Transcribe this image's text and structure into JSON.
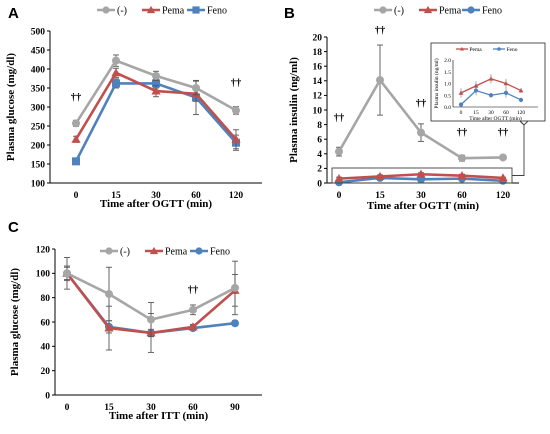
{
  "colors": {
    "control": "#a6a6a6",
    "pema": "#c0504d",
    "feno": "#4f81bd",
    "axis": "#000000",
    "box": "#404040"
  },
  "panels": [
    {
      "id": "A",
      "chart_data": {
        "type": "line",
        "title": "",
        "xlabel": "Time after OGTT (min)",
        "ylabel": "Plasma glucose (mg/dl)",
        "categories": [
          "0",
          "15",
          "30",
          "60",
          "120"
        ],
        "ylim": [
          100,
          500
        ],
        "yticks": [
          100,
          150,
          200,
          250,
          300,
          350,
          400,
          450,
          500
        ],
        "series": [
          {
            "name": "(-)",
            "key": "control",
            "marker": "circle",
            "values": [
              257,
              422,
              382,
              350,
              291
            ],
            "errors": [
              8,
              15,
              12,
              18,
              10
            ]
          },
          {
            "name": "Pema",
            "key": "pema",
            "marker": "triangle",
            "values": [
              215,
              390,
              342,
              335,
              215
            ],
            "errors": [
              8,
              12,
              15,
              20,
              25
            ]
          },
          {
            "name": "Feno",
            "key": "feno",
            "marker": "square",
            "values": [
              157,
              362,
              362,
              325,
              206
            ],
            "errors": [
              6,
              12,
              12,
              45,
              20
            ]
          }
        ],
        "annotations": [
          {
            "x": "0",
            "y": 317,
            "text": "††"
          },
          {
            "x": "120",
            "y": 355,
            "text": "††"
          }
        ],
        "legend": "top"
      }
    },
    {
      "id": "B",
      "chart_data": {
        "type": "line",
        "title": "",
        "xlabel": "Time after OGTT (min)",
        "ylabel": "Plasma insulin (ng/ml)",
        "categories": [
          "0",
          "15",
          "30",
          "60",
          "120"
        ],
        "ylim": [
          0,
          20
        ],
        "yticks": [
          0,
          2,
          4,
          6,
          8,
          10,
          12,
          14,
          16,
          18,
          20
        ],
        "series": [
          {
            "name": "(-)",
            "key": "control",
            "marker": "circle",
            "values": [
              4.3,
              14.1,
              6.9,
              3.4,
              3.5
            ],
            "errors": [
              0.6,
              4.8,
              1.2,
              0.4,
              0.2
            ]
          },
          {
            "name": "Pema",
            "key": "pema",
            "marker": "triangle",
            "values": [
              0.6,
              0.9,
              1.2,
              1.0,
              0.7
            ],
            "errors": [
              0.2,
              0.2,
              0.2,
              0.2,
              0.1
            ]
          },
          {
            "name": "Feno",
            "key": "feno",
            "marker": "circle",
            "values": [
              0.1,
              0.7,
              0.5,
              0.6,
              0.3
            ],
            "errors": [
              0.1,
              0.2,
              0.1,
              0.2,
              0.1
            ]
          }
        ],
        "annotations": [
          {
            "x": "0",
            "y": 8.5,
            "text": "††"
          },
          {
            "x": "15",
            "y": 20.5,
            "text": "††"
          },
          {
            "x": "30",
            "y": 10.5,
            "text": "††"
          },
          {
            "x": "60",
            "y": 6.5,
            "text": "††"
          },
          {
            "x": "120",
            "y": 6.5,
            "text": "††"
          }
        ],
        "legend": "top",
        "inset": {
          "ylabel": "Plasma insulin (ng/ml)",
          "xlabel": "Time after OGTT (min)",
          "ylim": [
            0,
            2.0
          ],
          "yticks": [
            "0.0",
            "0.5",
            "1.0",
            "1.5",
            "2.0"
          ],
          "categories": [
            "0",
            "15",
            "30",
            "60",
            "120"
          ],
          "legend": [
            "Pema",
            "Feno"
          ]
        }
      }
    },
    {
      "id": "C",
      "chart_data": {
        "type": "line",
        "title": "",
        "xlabel": "Time after ITT (min)",
        "ylabel": "Plasma glucose (mg/dl)",
        "categories": [
          "0",
          "15",
          "30",
          "60",
          "90"
        ],
        "ylim": [
          0,
          120
        ],
        "yticks": [
          0,
          20,
          40,
          60,
          80,
          100,
          120
        ],
        "series": [
          {
            "name": "(-)",
            "key": "control",
            "marker": "circle",
            "values": [
              100,
              83,
              62,
              70,
              88
            ],
            "errors": [
              13,
              22,
              14,
              4,
              22
            ]
          },
          {
            "name": "Pema",
            "key": "pema",
            "marker": "triangle",
            "values": [
              100,
              55,
              51,
              56,
              86
            ],
            "errors": [
              6,
              18,
              16,
              2,
              13
            ]
          },
          {
            "name": "Feno",
            "key": "feno",
            "marker": "circle",
            "values": [
              100,
              56,
              51,
              55,
              59
            ],
            "errors": [
              5,
              5,
              3,
              2,
              2
            ]
          }
        ],
        "annotations": [
          {
            "x": "60",
            "y": 84,
            "text": "††"
          }
        ],
        "legend": "top"
      }
    }
  ]
}
